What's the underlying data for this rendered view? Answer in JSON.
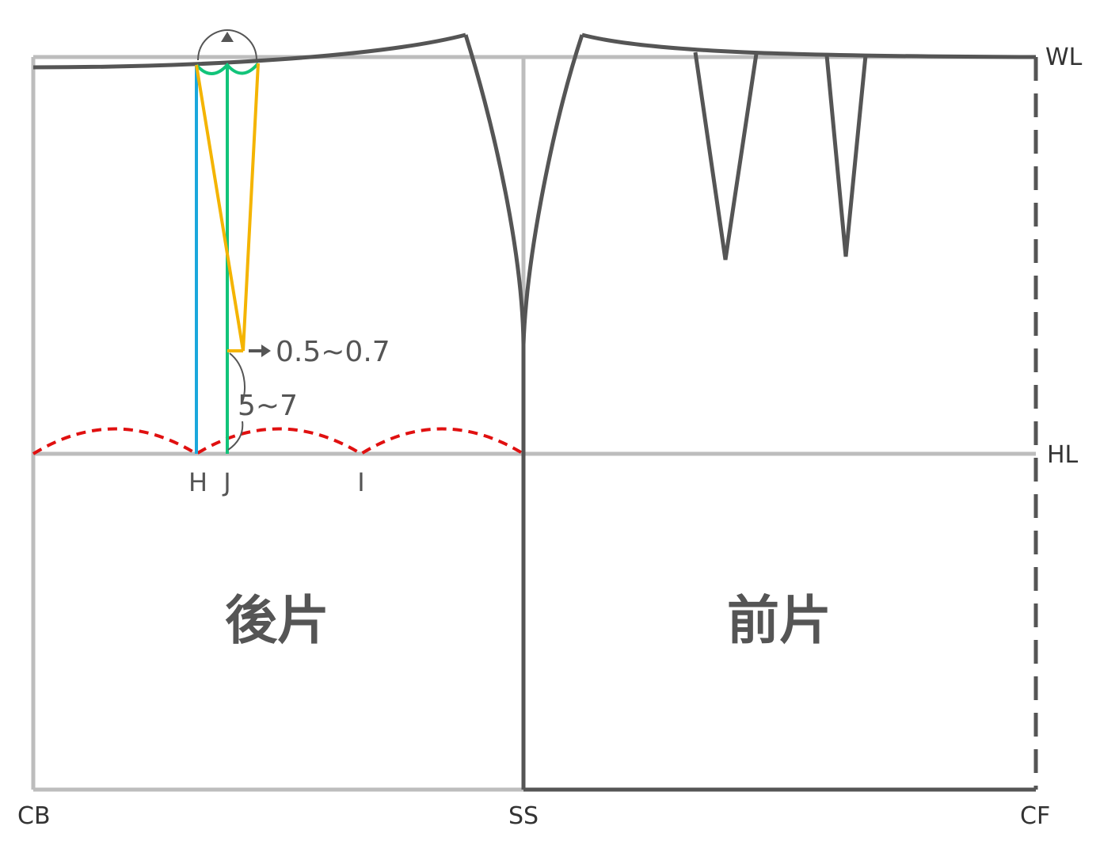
{
  "colors": {
    "frame": "#bdbdbd",
    "pattern": "#555555",
    "hip_curve": "#e01010",
    "guide_blue": "#1aa7dc",
    "guide_green": "#12c47a",
    "dart_yellow": "#f4b400"
  },
  "labels": {
    "wl": "WL",
    "hl": "HL",
    "cb": "CB",
    "ss": "SS",
    "cf": "CF",
    "h": "H",
    "j": "J",
    "i": "I"
  },
  "measurements": {
    "dart_shift": "0.5~0.7",
    "dart_shorten": "5~7"
  },
  "pieces": {
    "back": "後片",
    "front": "前片"
  }
}
